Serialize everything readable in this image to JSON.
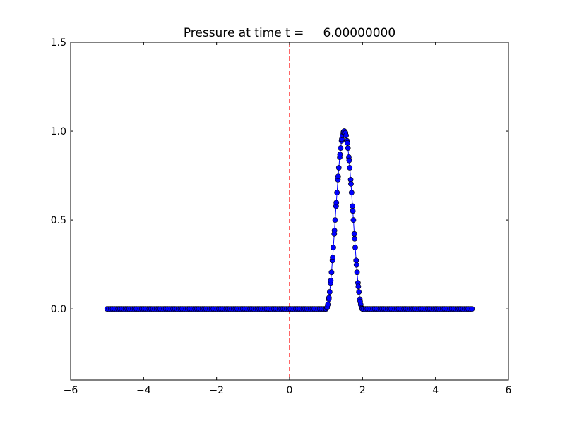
{
  "chart_data": {
    "type": "line",
    "title": "Pressure at time t =     6.00000000",
    "xlabel": "",
    "ylabel": "",
    "xlim": [
      -6,
      6
    ],
    "ylim": [
      -0.4,
      1.5
    ],
    "x_ticks": [
      -6,
      -4,
      -2,
      0,
      2,
      4,
      6
    ],
    "x_tick_labels": [
      "−6",
      "−4",
      "−2",
      "0",
      "2",
      "4",
      "6"
    ],
    "y_ticks": [
      0.0,
      0.5,
      1.0,
      1.5
    ],
    "y_tick_labels": [
      "0.0",
      "0.5",
      "1.0",
      "1.5"
    ],
    "grid": false,
    "series": [
      {
        "style": "line-with-circle-markers",
        "color": "#0000ff",
        "marker_edge_color": "#000000",
        "x_range": [
          -5,
          5
        ],
        "pulse_center": 1.5,
        "pulse_half_width": 0.5,
        "pulse_peak": 1.0,
        "points": [
          [
            -5.0,
            0.0
          ],
          [
            -4.0,
            0.0
          ],
          [
            -3.0,
            0.0
          ],
          [
            -2.0,
            0.0
          ],
          [
            -1.0,
            0.0
          ],
          [
            0.0,
            0.0
          ],
          [
            0.9,
            0.0
          ],
          [
            1.0,
            0.0
          ],
          [
            1.05,
            0.02
          ],
          [
            1.1,
            0.1
          ],
          [
            1.15,
            0.21
          ],
          [
            1.2,
            0.35
          ],
          [
            1.25,
            0.5
          ],
          [
            1.3,
            0.65
          ],
          [
            1.35,
            0.79
          ],
          [
            1.4,
            0.9
          ],
          [
            1.45,
            0.98
          ],
          [
            1.5,
            1.0
          ],
          [
            1.55,
            0.98
          ],
          [
            1.6,
            0.9
          ],
          [
            1.65,
            0.79
          ],
          [
            1.7,
            0.65
          ],
          [
            1.75,
            0.5
          ],
          [
            1.8,
            0.35
          ],
          [
            1.85,
            0.21
          ],
          [
            1.9,
            0.1
          ],
          [
            1.95,
            0.02
          ],
          [
            2.0,
            0.0
          ],
          [
            3.0,
            0.0
          ],
          [
            4.0,
            0.0
          ],
          [
            5.0,
            0.0
          ]
        ]
      }
    ],
    "reference_line": {
      "orientation": "vertical",
      "x": 0,
      "color": "#ff0000",
      "style": "dashed"
    }
  }
}
